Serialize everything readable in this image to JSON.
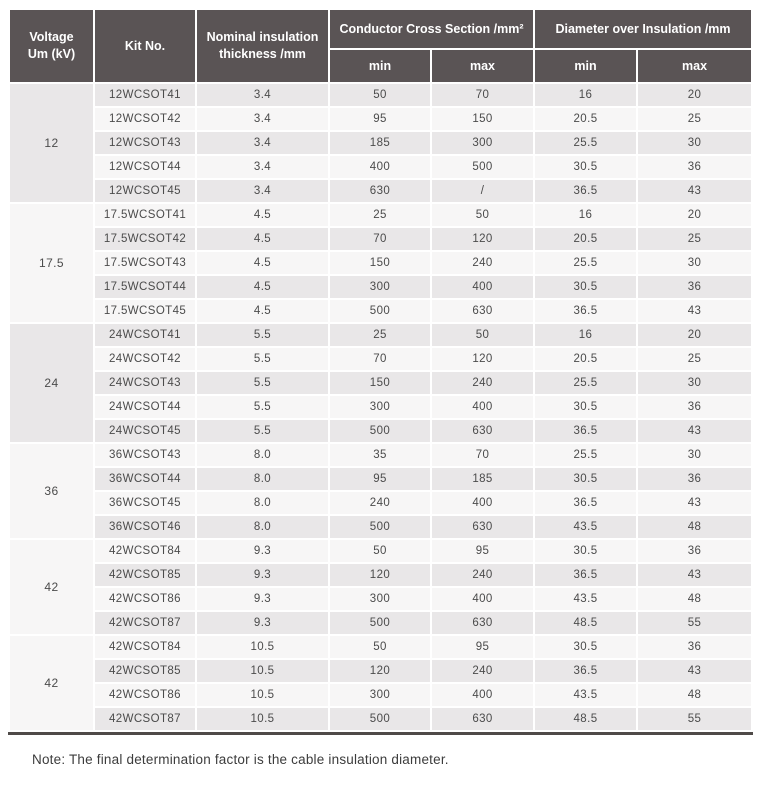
{
  "table": {
    "header": {
      "voltage": "Voltage\nUm (kV)",
      "kit": "Kit No.",
      "nominal": "Nominal insulation\nthickness /mm",
      "ccs_group": "Conductor Cross Section /mm²",
      "doi_group": "Diameter over Insulation /mm",
      "min": "min",
      "max": "max"
    },
    "groups": [
      {
        "voltage": "12",
        "rows": [
          {
            "kit": "12WCSOT41",
            "thickness": "3.4",
            "ccs_min": "50",
            "ccs_max": "70",
            "doi_min": "16",
            "doi_max": "20"
          },
          {
            "kit": "12WCSOT42",
            "thickness": "3.4",
            "ccs_min": "95",
            "ccs_max": "150",
            "doi_min": "20.5",
            "doi_max": "25"
          },
          {
            "kit": "12WCSOT43",
            "thickness": "3.4",
            "ccs_min": "185",
            "ccs_max": "300",
            "doi_min": "25.5",
            "doi_max": "30"
          },
          {
            "kit": "12WCSOT44",
            "thickness": "3.4",
            "ccs_min": "400",
            "ccs_max": "500",
            "doi_min": "30.5",
            "doi_max": "36"
          },
          {
            "kit": "12WCSOT45",
            "thickness": "3.4",
            "ccs_min": "630",
            "ccs_max": "/",
            "doi_min": "36.5",
            "doi_max": "43"
          }
        ]
      },
      {
        "voltage": "17.5",
        "rows": [
          {
            "kit": "17.5WCSOT41",
            "thickness": "4.5",
            "ccs_min": "25",
            "ccs_max": "50",
            "doi_min": "16",
            "doi_max": "20"
          },
          {
            "kit": "17.5WCSOT42",
            "thickness": "4.5",
            "ccs_min": "70",
            "ccs_max": "120",
            "doi_min": "20.5",
            "doi_max": "25"
          },
          {
            "kit": "17.5WCSOT43",
            "thickness": "4.5",
            "ccs_min": "150",
            "ccs_max": "240",
            "doi_min": "25.5",
            "doi_max": "30"
          },
          {
            "kit": "17.5WCSOT44",
            "thickness": "4.5",
            "ccs_min": "300",
            "ccs_max": "400",
            "doi_min": "30.5",
            "doi_max": "36"
          },
          {
            "kit": "17.5WCSOT45",
            "thickness": "4.5",
            "ccs_min": "500",
            "ccs_max": "630",
            "doi_min": "36.5",
            "doi_max": "43"
          }
        ]
      },
      {
        "voltage": "24",
        "rows": [
          {
            "kit": "24WCSOT41",
            "thickness": "5.5",
            "ccs_min": "25",
            "ccs_max": "50",
            "doi_min": "16",
            "doi_max": "20"
          },
          {
            "kit": "24WCSOT42",
            "thickness": "5.5",
            "ccs_min": "70",
            "ccs_max": "120",
            "doi_min": "20.5",
            "doi_max": "25"
          },
          {
            "kit": "24WCSOT43",
            "thickness": "5.5",
            "ccs_min": "150",
            "ccs_max": "240",
            "doi_min": "25.5",
            "doi_max": "30"
          },
          {
            "kit": "24WCSOT44",
            "thickness": "5.5",
            "ccs_min": "300",
            "ccs_max": "400",
            "doi_min": "30.5",
            "doi_max": "36"
          },
          {
            "kit": "24WCSOT45",
            "thickness": "5.5",
            "ccs_min": "500",
            "ccs_max": "630",
            "doi_min": "36.5",
            "doi_max": "43"
          }
        ]
      },
      {
        "voltage": "36",
        "rows": [
          {
            "kit": "36WCSOT43",
            "thickness": "8.0",
            "ccs_min": "35",
            "ccs_max": "70",
            "doi_min": "25.5",
            "doi_max": "30"
          },
          {
            "kit": "36WCSOT44",
            "thickness": "8.0",
            "ccs_min": "95",
            "ccs_max": "185",
            "doi_min": "30.5",
            "doi_max": "36"
          },
          {
            "kit": "36WCSOT45",
            "thickness": "8.0",
            "ccs_min": "240",
            "ccs_max": "400",
            "doi_min": "36.5",
            "doi_max": "43"
          },
          {
            "kit": "36WCSOT46",
            "thickness": "8.0",
            "ccs_min": "500",
            "ccs_max": "630",
            "doi_min": "43.5",
            "doi_max": "48"
          }
        ]
      },
      {
        "voltage": "42",
        "rows": [
          {
            "kit": "42WCSOT84",
            "thickness": "9.3",
            "ccs_min": "50",
            "ccs_max": "95",
            "doi_min": "30.5",
            "doi_max": "36"
          },
          {
            "kit": "42WCSOT85",
            "thickness": "9.3",
            "ccs_min": "120",
            "ccs_max": "240",
            "doi_min": "36.5",
            "doi_max": "43"
          },
          {
            "kit": "42WCSOT86",
            "thickness": "9.3",
            "ccs_min": "300",
            "ccs_max": "400",
            "doi_min": "43.5",
            "doi_max": "48"
          },
          {
            "kit": "42WCSOT87",
            "thickness": "9.3",
            "ccs_min": "500",
            "ccs_max": "630",
            "doi_min": "48.5",
            "doi_max": "55"
          }
        ]
      },
      {
        "voltage": "42",
        "rows": [
          {
            "kit": "42WCSOT84",
            "thickness": "10.5",
            "ccs_min": "50",
            "ccs_max": "95",
            "doi_min": "30.5",
            "doi_max": "36"
          },
          {
            "kit": "42WCSOT85",
            "thickness": "10.5",
            "ccs_min": "120",
            "ccs_max": "240",
            "doi_min": "36.5",
            "doi_max": "43"
          },
          {
            "kit": "42WCSOT86",
            "thickness": "10.5",
            "ccs_min": "300",
            "ccs_max": "400",
            "doi_min": "43.5",
            "doi_max": "48"
          },
          {
            "kit": "42WCSOT87",
            "thickness": "10.5",
            "ccs_min": "500",
            "ccs_max": "630",
            "doi_min": "48.5",
            "doi_max": "55"
          }
        ]
      }
    ],
    "note": "Note: The final determination factor is the cable insulation diameter."
  },
  "colors": {
    "header_bg": "#5a5455",
    "header_text": "#ffffff",
    "row_odd_bg": "#e9e7e8",
    "row_even_bg": "#f7f6f6",
    "voltage_cell_bg": "#e9e7e8",
    "body_text": "#4b4b4b",
    "bottom_border": "#4f4a48"
  }
}
